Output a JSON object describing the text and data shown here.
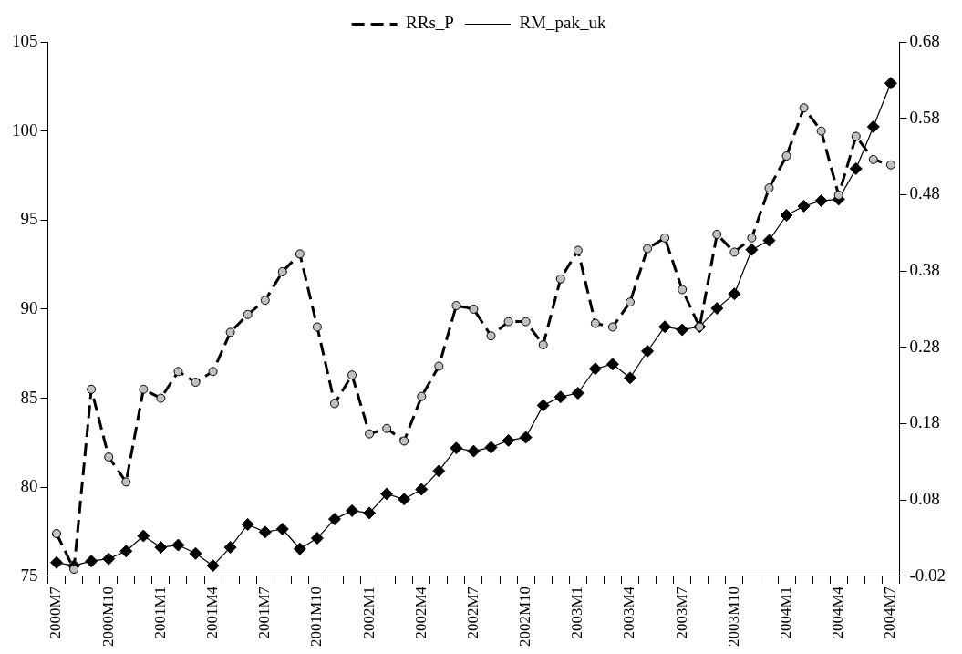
{
  "chart_data": {
    "type": "line",
    "categories": [
      "2000M7",
      null,
      null,
      "2000M10",
      null,
      null,
      "2001M1",
      null,
      null,
      "2001M4",
      null,
      null,
      "2001M7",
      null,
      null,
      "2001M10",
      null,
      null,
      "2002M1",
      null,
      null,
      "2002M4",
      null,
      null,
      "2002M7",
      null,
      null,
      "2002M10",
      null,
      null,
      "2003M1",
      null,
      null,
      "2003M4",
      null,
      null,
      "2003M7",
      null,
      null,
      "2003M10",
      null,
      null,
      "2004M1",
      null,
      null,
      "2004M4",
      null,
      null,
      "2004M7"
    ],
    "series": [
      {
        "name": "RRs_P",
        "color": "#000000",
        "line_style": "dashed",
        "marker": "circle",
        "values": [
          77.4,
          75.4,
          85.5,
          81.7,
          80.3,
          85.5,
          85.0,
          86.5,
          85.9,
          86.5,
          88.7,
          89.7,
          90.5,
          92.1,
          93.1,
          89.0,
          84.7,
          86.3,
          83.0,
          83.3,
          82.6,
          85.1,
          86.8,
          90.2,
          90.0,
          88.5,
          89.3,
          89.3,
          88.0,
          91.7,
          93.3,
          89.2,
          89.0,
          90.4,
          93.4,
          94.0,
          91.1,
          89.0,
          94.2,
          93.2,
          94.0,
          96.8,
          98.6,
          101.3,
          100.0,
          96.4,
          99.7,
          98.4,
          98.1
        ]
      },
      {
        "name": "RM_pak_uk",
        "color": "#000000",
        "line_style": "solid",
        "marker": "diamond",
        "axis": "y2",
        "values": [
          -0.002,
          -0.006,
          0.0,
          0.003,
          0.013,
          0.033,
          0.018,
          0.021,
          0.01,
          -0.006,
          0.018,
          0.048,
          0.038,
          0.042,
          0.016,
          0.03,
          0.055,
          0.066,
          0.063,
          0.088,
          0.081,
          0.094,
          0.118,
          0.148,
          0.144,
          0.149,
          0.158,
          0.162,
          0.204,
          0.215,
          0.22,
          0.252,
          0.258,
          0.24,
          0.275,
          0.307,
          0.303,
          0.307,
          0.331,
          0.35,
          0.408,
          0.42,
          0.453,
          0.465,
          0.472,
          0.474,
          0.514,
          0.569,
          0.626
        ]
      }
    ],
    "ylim": [
      75,
      105
    ],
    "yticks": [
      75,
      80,
      85,
      90,
      95,
      100,
      105
    ],
    "y2lim": [
      -0.02,
      0.68
    ],
    "y2ticks": [
      {
        "value": -0.02,
        "label": "-0.02"
      },
      {
        "value": 0.08,
        "label": "0.08"
      },
      {
        "value": 0.18,
        "label": "0.18"
      },
      {
        "value": 0.28,
        "label": "0.28"
      },
      {
        "value": 0.38,
        "label": "0.38"
      },
      {
        "value": 0.48,
        "label": "0.48"
      },
      {
        "value": 0.58,
        "label": "0.58"
      },
      {
        "value": 0.68,
        "label": "0.68"
      }
    ],
    "grid": false,
    "legend": "top"
  }
}
